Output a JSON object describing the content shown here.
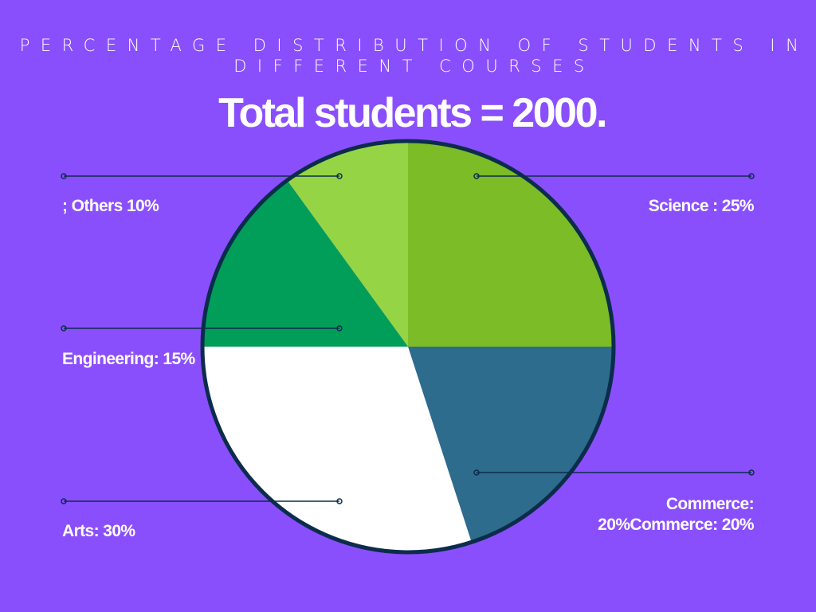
{
  "colors": {
    "background": "#8a4ffd",
    "outline": "#0c2c4c",
    "science": "#7bbc27",
    "commerce": "#2d6c8c",
    "arts": "#ffffff",
    "engineering": "#009e58",
    "others": "#95d545"
  },
  "chart_data": {
    "type": "pie",
    "title": "PERCENTAGE DISTRIBUTION OF STUDENTS IN DIFFERENT COURSES",
    "subtitle": "Total students = 2000.",
    "slices": [
      {
        "name": "Science",
        "value": 25,
        "label": "Science : 25%"
      },
      {
        "name": "Commerce",
        "value": 20,
        "label": "Commerce: 20%Commerce: 20%"
      },
      {
        "name": "Arts",
        "value": 30,
        "label": "Arts: 30%"
      },
      {
        "name": "Engineering",
        "value": 15,
        "label": "Engineering: 15%"
      },
      {
        "name": "Others",
        "value": 10,
        "label": "; Others 10%"
      }
    ]
  }
}
